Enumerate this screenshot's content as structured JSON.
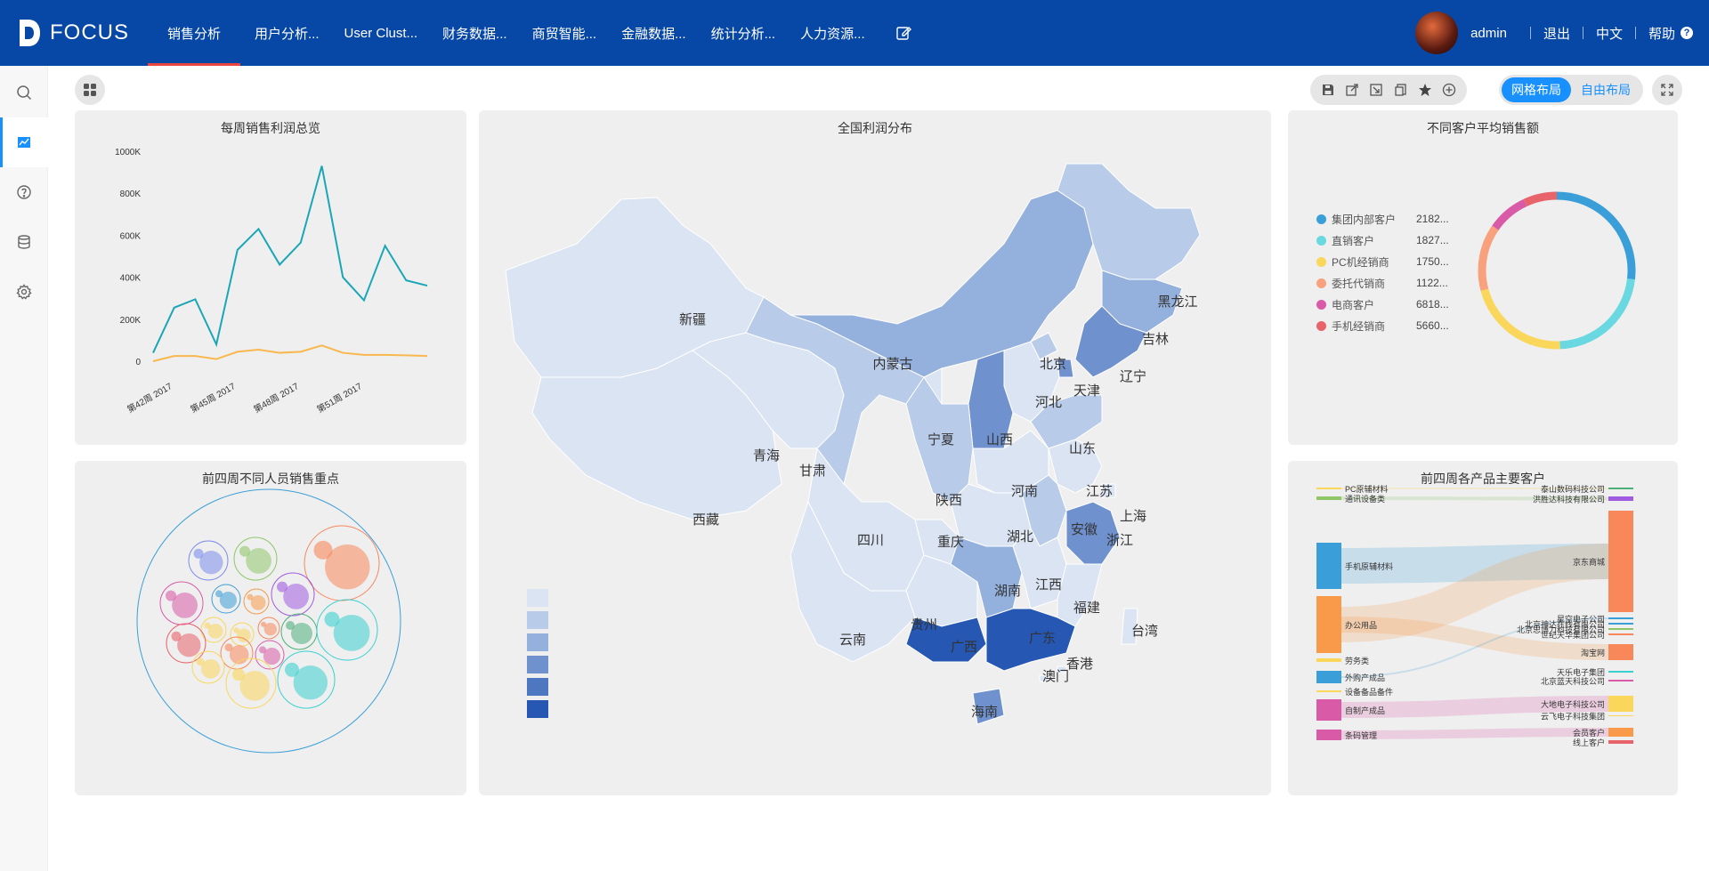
{
  "app": {
    "logo_text": "FOCUS"
  },
  "nav": {
    "tabs": [
      {
        "label": "销售分析",
        "active": true
      },
      {
        "label": "用户分析..."
      },
      {
        "label": "User Clust..."
      },
      {
        "label": "财务数据..."
      },
      {
        "label": "商贸智能..."
      },
      {
        "label": "金融数据..."
      },
      {
        "label": "统计分析..."
      },
      {
        "label": "人力资源..."
      }
    ]
  },
  "user": {
    "name": "admin",
    "logout": "退出",
    "language": "中文",
    "help": "帮助",
    "help_icon": "?"
  },
  "layout_switch": {
    "grid": "网格布局",
    "free": "自由布局"
  },
  "colors": {
    "brand": "#0747a6",
    "accent": "#1890ff",
    "active_tab_underline": "#e8463e"
  },
  "panels": {
    "weekly": {
      "title": "每周销售利润总览"
    },
    "map": {
      "title": "全国利润分布"
    },
    "donut": {
      "title": "不同客户平均销售额"
    },
    "bubbles": {
      "title": "前四周不同人员销售重点"
    },
    "sankey": {
      "title": "前四周各产品主要客户"
    }
  },
  "chart_data": [
    {
      "type": "line",
      "title": "每周销售利润总览",
      "y_ticks": [
        "0",
        "200K",
        "400K",
        "600K",
        "800K",
        "1000K"
      ],
      "x_tick_labels": [
        "第42周 2017",
        "第45周 2017",
        "第48周 2017",
        "第51周 2017"
      ],
      "ylim": [
        0,
        1000000
      ],
      "series": [
        {
          "color": "#1aa6b7",
          "values": [
            40000,
            255000,
            295000,
            80000,
            530000,
            630000,
            460000,
            565000,
            930000,
            400000,
            290000,
            550000,
            385000,
            360000
          ]
        },
        {
          "color": "#f8b84e",
          "values": [
            0,
            25000,
            25000,
            10000,
            45000,
            55000,
            40000,
            45000,
            75000,
            40000,
            30000,
            30000,
            28000,
            25000
          ]
        }
      ]
    },
    {
      "type": "pie",
      "title": "不同客户平均销售额",
      "series": [
        {
          "name": "集团内部客户",
          "label": "2182...",
          "value": 2182,
          "color": "#3a9fd8"
        },
        {
          "name": "直销客户",
          "label": "1827...",
          "value": 1827,
          "color": "#6ad8e0"
        },
        {
          "name": "PC机经销商",
          "label": "1750...",
          "value": 1750,
          "color": "#fad65a"
        },
        {
          "name": "委托代销商",
          "label": "1122...",
          "value": 1122,
          "color": "#f8a17c"
        },
        {
          "name": "电商客户",
          "label": "6818...",
          "value": 681.8,
          "color": "#d95ba8"
        },
        {
          "name": "手机经销商",
          "label": "5660...",
          "value": 566,
          "color": "#e8636a"
        }
      ]
    },
    {
      "type": "sankey",
      "title": "前四周各产品主要客户",
      "sources": [
        "PC原辅材料",
        "通讯设备类",
        "手机原辅材料",
        "办公用品",
        "劳务类",
        "外购产成品",
        "设备备品备件",
        "自制产成品",
        "条码管理"
      ],
      "targets": [
        "泰山数码科技公司",
        "洪胜达科技有限公司",
        "京东商城",
        "星空电子公司",
        "北京神达在线有限公司",
        "北京思博力科技有限公司",
        "世纪天华集团公司",
        "淘宝网",
        "天乐电子集团",
        "北京蓝天科技公司",
        "大地电子科技公司",
        "云飞电子科技集团",
        "会员客户",
        "线上客户"
      ]
    },
    {
      "type": "map",
      "title": "全国利润分布",
      "regions": [
        "新疆",
        "西藏",
        "青海",
        "甘肃",
        "内蒙古",
        "黑龙江",
        "吉林",
        "辽宁",
        "北京",
        "天津",
        "河北",
        "山西",
        "宁夏",
        "陕西",
        "山东",
        "河南",
        "江苏",
        "安徽",
        "上海",
        "浙江",
        "湖北",
        "四川",
        "重庆",
        "贵州",
        "云南",
        "湖南",
        "江西",
        "福建",
        "广西",
        "广东",
        "台湾",
        "香港",
        "澳门",
        "海南"
      ],
      "scale_colors": [
        "#dbe4f3",
        "#b8cbe8",
        "#94b0dc",
        "#6f92cf",
        "#4d77c1",
        "#2557b3"
      ]
    }
  ]
}
